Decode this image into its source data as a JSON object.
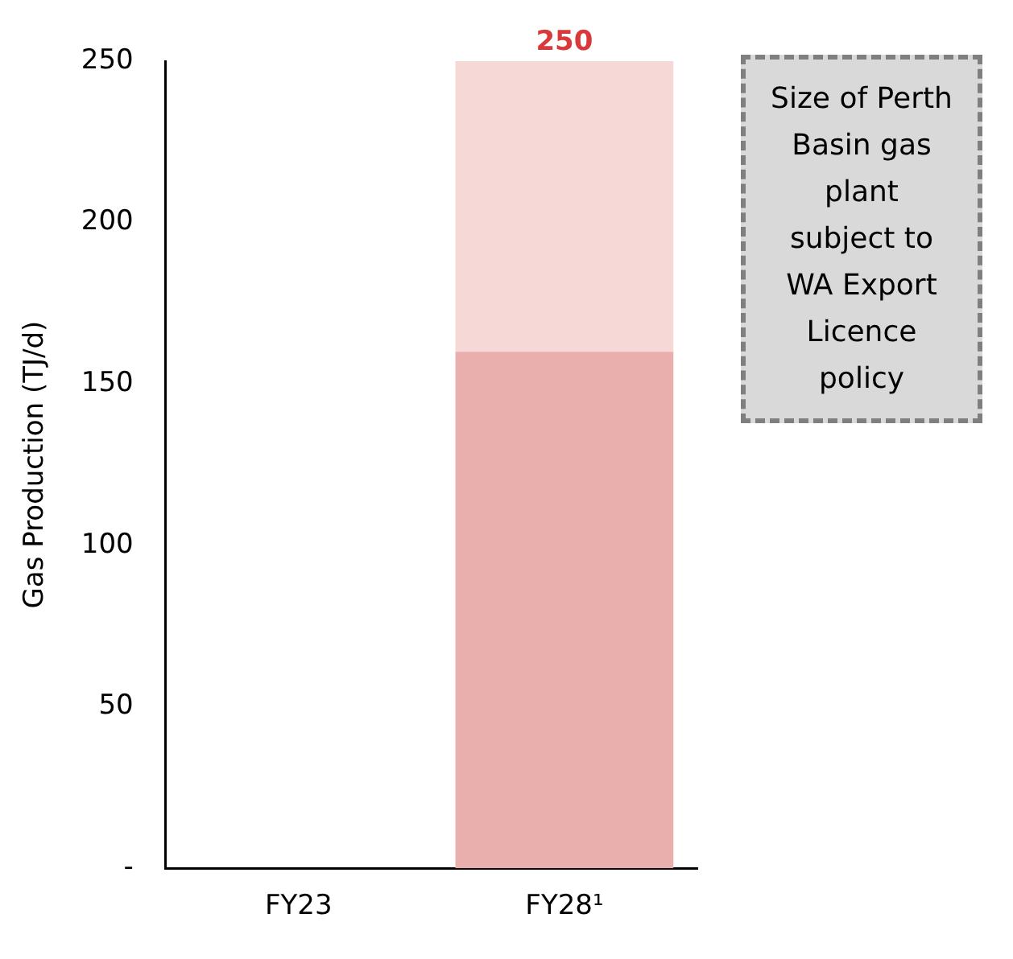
{
  "chart_data": {
    "type": "bar",
    "stacked": true,
    "ylabel": "Gas Production (TJ/d)",
    "categories": [
      "FY23",
      "FY28¹"
    ],
    "series": [
      {
        "color": "#e8afac",
        "values": [
          null,
          160
        ]
      },
      {
        "color": "#f6d9d7",
        "values": [
          null,
          90
        ]
      }
    ],
    "totals": [
      null,
      "250"
    ],
    "ylim": [
      0,
      250
    ],
    "yticks": [
      {
        "value": 0,
        "label": "-"
      },
      50,
      100,
      150,
      200,
      250
    ],
    "grid": false,
    "legend": false,
    "annotations": [
      "Size of Perth Basin gas plant subject to WA Export Licence policy"
    ]
  }
}
